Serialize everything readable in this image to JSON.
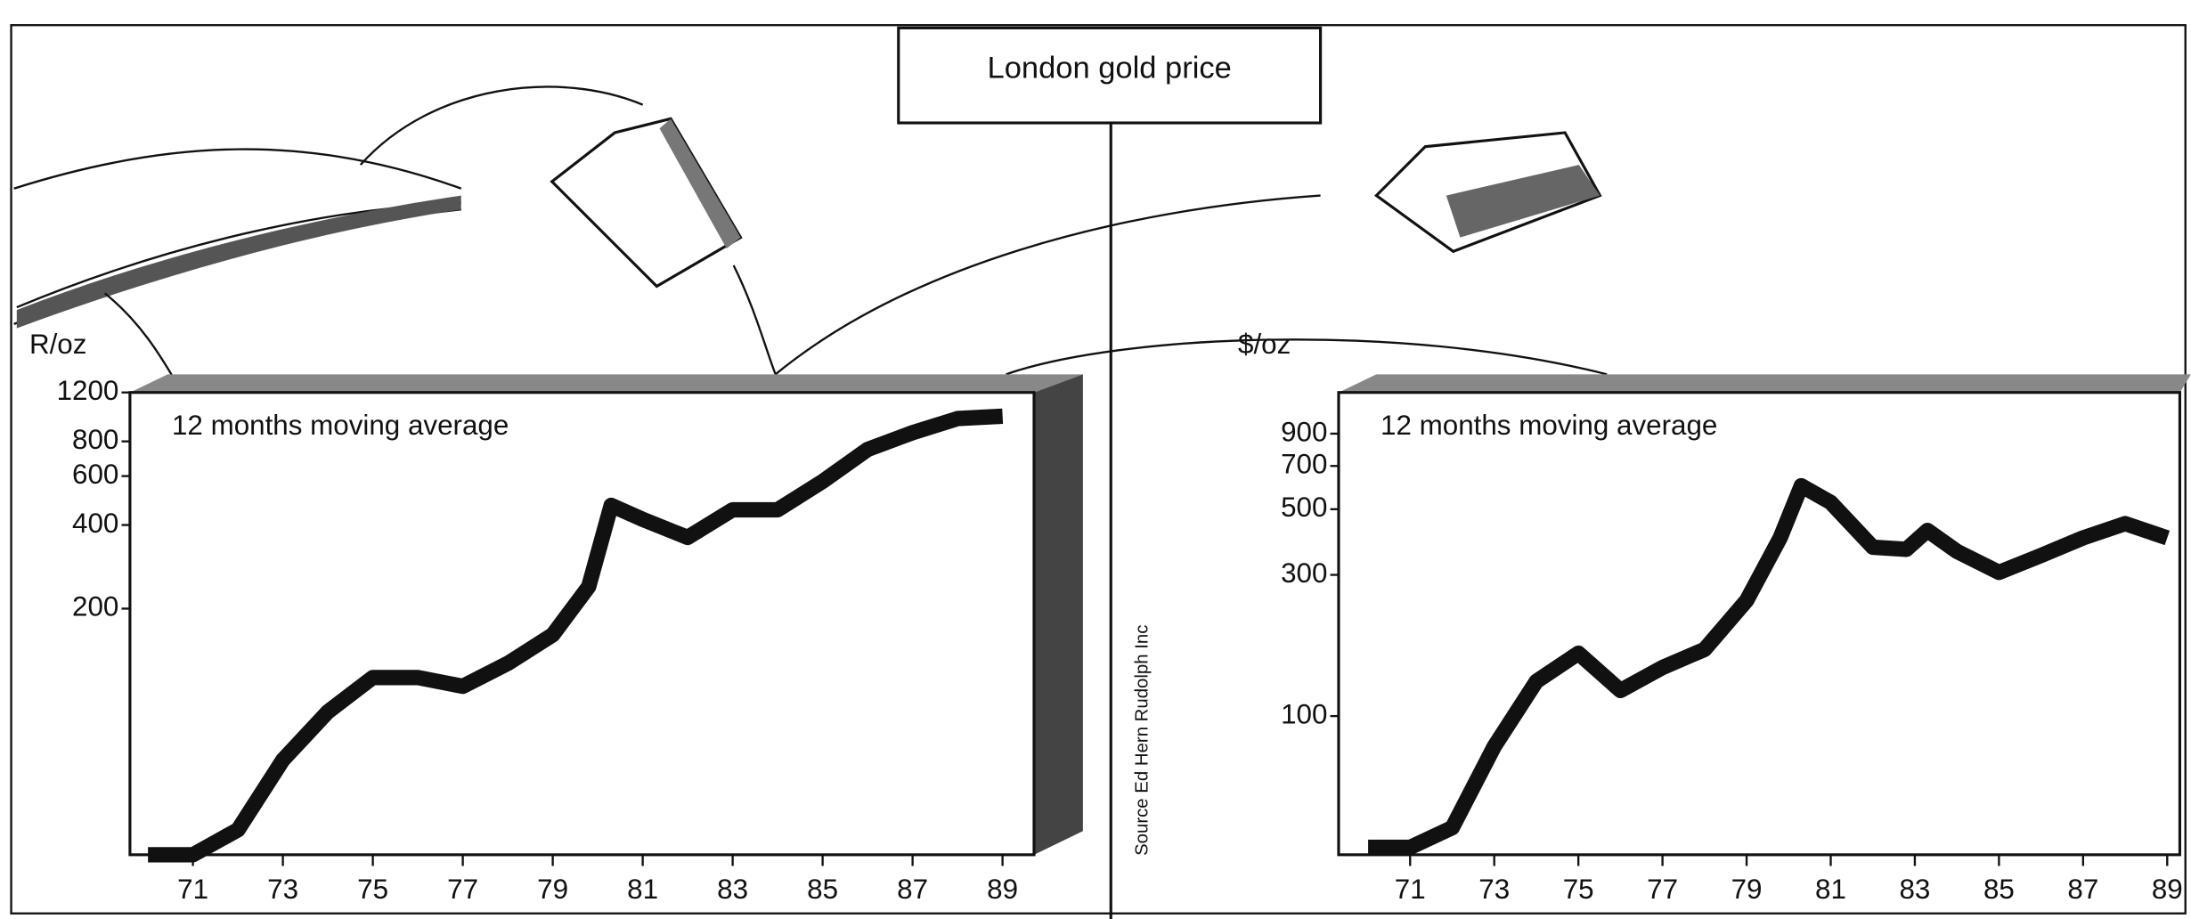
{
  "title": "London gold price",
  "source": "Source Ed Hern Rudolph Inc",
  "chart_data": [
    {
      "type": "line",
      "y_label": "R/oz",
      "annotation": "12 months moving average",
      "log": true,
      "grid": false,
      "color": "#111111",
      "x": [
        70,
        71,
        72,
        73,
        74,
        75,
        76,
        77,
        78,
        79,
        79.8,
        80.3,
        81,
        82,
        83,
        84,
        85,
        86,
        87,
        88,
        89
      ],
      "values": [
        26,
        26,
        32,
        57,
        85,
        113,
        113,
        105,
        127,
        161,
        240,
        471,
        419,
        361,
        454,
        454,
        574,
        748,
        860,
        966,
        986
      ],
      "xlim": [
        69.6,
        89.7
      ],
      "xticks": [
        71,
        73,
        75,
        77,
        79,
        81,
        83,
        85,
        87,
        89
      ],
      "ylim": [
        26,
        1200
      ],
      "yticks": [
        200,
        400,
        600,
        800,
        1200
      ]
    },
    {
      "type": "line",
      "y_label": "$/oz",
      "annotation": "12 months moving average",
      "log": true,
      "grid": false,
      "color": "#111111",
      "x": [
        70,
        71,
        72,
        73,
        74,
        75,
        76,
        77,
        78,
        79,
        79.8,
        80.3,
        81,
        82,
        82.8,
        83.3,
        84,
        85,
        86,
        87,
        88,
        89
      ],
      "values": [
        36,
        36,
        42,
        79,
        131,
        163,
        122,
        146,
        168,
        246,
        400,
        600,
        527,
        372,
        366,
        424,
        360,
        306,
        349,
        400,
        447,
        400
      ],
      "xlim": [
        69.3,
        89.3
      ],
      "xticks": [
        71,
        73,
        75,
        77,
        79,
        81,
        83,
        85,
        87,
        89
      ],
      "ylim": [
        34,
        1240
      ],
      "yticks": [
        100,
        300,
        500,
        700,
        900
      ]
    }
  ]
}
